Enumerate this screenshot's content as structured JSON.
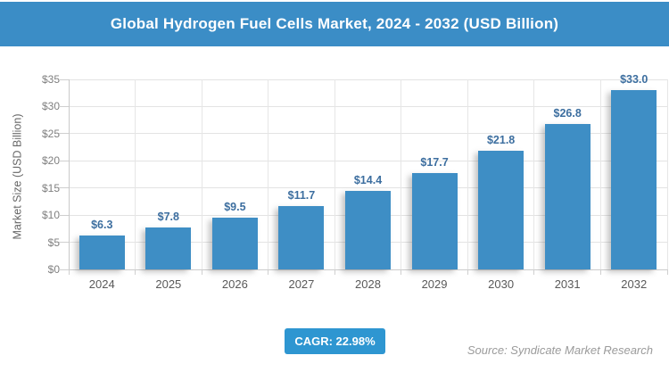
{
  "header": {
    "title": "Global Hydrogen Fuel Cells Market, 2024 - 2032 (USD Billion)",
    "bg_color": "#3B8DC6",
    "text_color": "#ffffff"
  },
  "chart_data": {
    "type": "bar",
    "title": "Global Hydrogen Fuel Cells Market, 2024 - 2032 (USD Billion)",
    "categories": [
      "2024",
      "2025",
      "2026",
      "2027",
      "2028",
      "2029",
      "2030",
      "2031",
      "2032"
    ],
    "values": [
      6.3,
      7.8,
      9.5,
      11.7,
      14.4,
      17.7,
      21.8,
      26.8,
      33.0
    ],
    "value_labels": [
      "$6.3",
      "$7.8",
      "$9.5",
      "$11.7",
      "$14.4",
      "$17.7",
      "$21.8",
      "$26.8",
      "$33.0"
    ],
    "xlabel": "",
    "ylabel": "Market Size (USD Billion)",
    "ylim": [
      0,
      35
    ],
    "ytick_step": 5,
    "ytick_labels": [
      "$0",
      "$5",
      "$10",
      "$15",
      "$20",
      "$25",
      "$30",
      "$35"
    ],
    "grid": true,
    "legend": false,
    "bar_color": "#3E8EC5",
    "value_label_color": "#3C6E9F"
  },
  "footer": {
    "cagr_label": "CAGR: 22.98%",
    "badge_color": "#2E96D1",
    "source": "Source: Syndicate Market Research"
  }
}
